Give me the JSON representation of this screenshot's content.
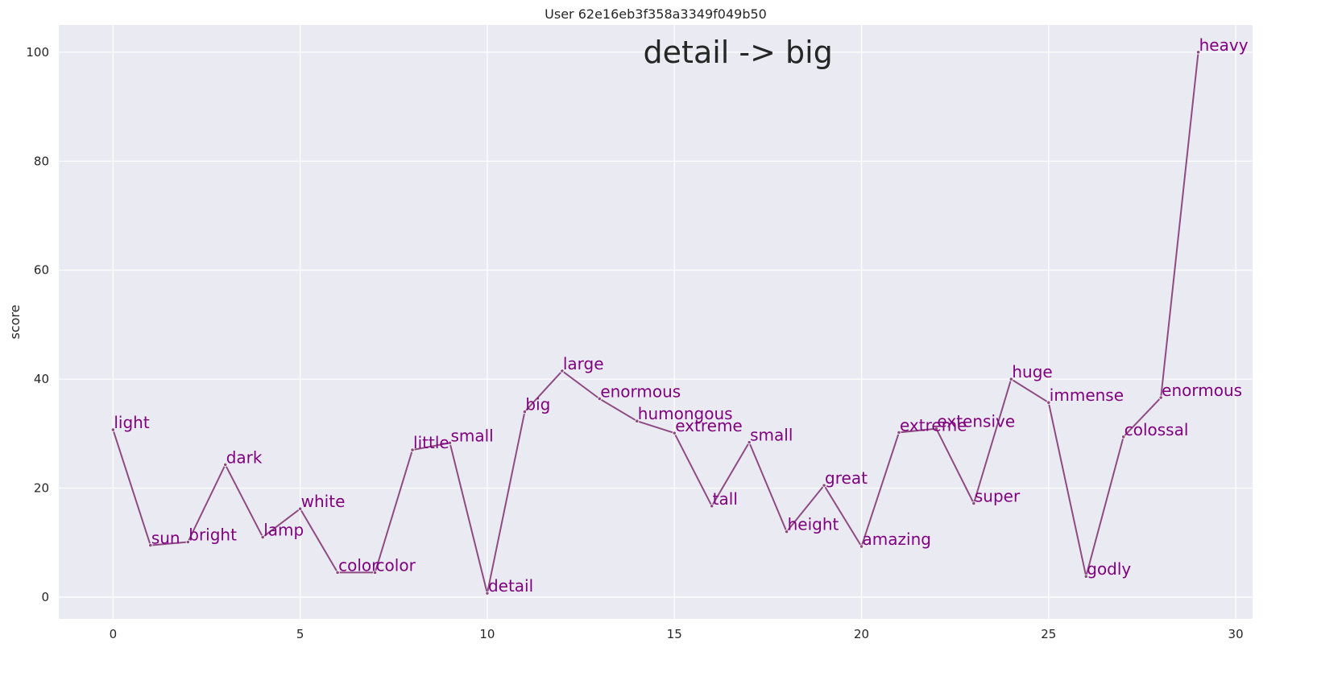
{
  "chart_data": {
    "type": "line",
    "title": "User 62e16eb3f358a3349f049b50",
    "annotation": "detail -> big",
    "xlabel": "",
    "ylabel": "score",
    "xlim": [
      -1.45,
      30.45
    ],
    "ylim": [
      -4,
      105
    ],
    "xticks": [
      0,
      5,
      10,
      15,
      20,
      25,
      30
    ],
    "yticks": [
      0,
      20,
      40,
      60,
      80,
      100
    ],
    "grid": true,
    "colors": {
      "background": "#eaeaf2",
      "grid": "#ffffff",
      "line": "#8e4b82",
      "label": "#800080",
      "text": "#262626"
    },
    "series": [
      {
        "x": [
          0,
          1,
          2,
          3,
          4,
          5,
          6,
          7,
          8,
          9,
          10,
          11,
          12,
          13,
          14,
          15,
          16,
          17,
          18,
          19,
          20,
          21,
          22,
          23,
          24,
          25,
          26,
          27,
          28,
          29
        ],
        "values": [
          30.7,
          9.5,
          10.1,
          24.3,
          11.0,
          16.2,
          4.5,
          4.5,
          27.0,
          28.3,
          0.7,
          34.0,
          41.5,
          36.4,
          32.3,
          30.1,
          16.7,
          28.4,
          12.0,
          20.5,
          9.3,
          30.2,
          30.9,
          17.2,
          40.0,
          35.7,
          3.8,
          29.4,
          36.6,
          100.0
        ],
        "labels": [
          "light",
          "sun",
          "bright",
          "dark",
          "lamp",
          "white",
          "color",
          "color",
          "little",
          "small",
          "detail",
          "big",
          "large",
          "enormous",
          "humongous",
          "extreme",
          "tall",
          "small",
          "height",
          "great",
          "amazing",
          "extreme",
          "extensive",
          "super",
          "huge",
          "immense",
          "godly",
          "colossal",
          "enormous",
          "heavy"
        ]
      }
    ]
  }
}
